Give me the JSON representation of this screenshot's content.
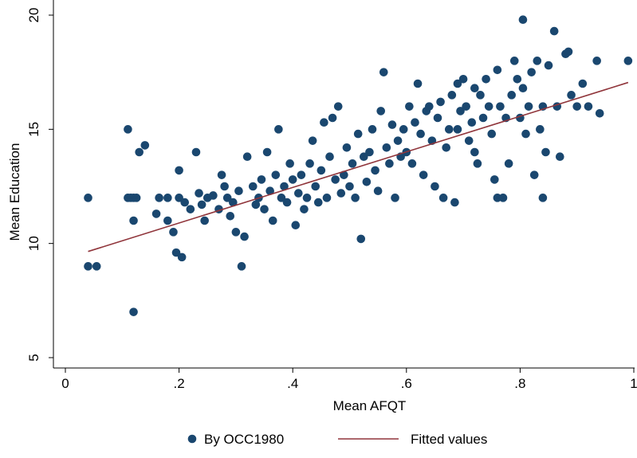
{
  "chart_data": {
    "type": "scatter",
    "xlabel": "Mean AFQT",
    "ylabel": "Mean Education",
    "xlim": [
      0,
      1
    ],
    "ylim": [
      5,
      20
    ],
    "x_ticks": [
      "0",
      ".2",
      ".4",
      ".6",
      ".8",
      "1"
    ],
    "x_tick_values": [
      0,
      0.2,
      0.4,
      0.6,
      0.8,
      1.0
    ],
    "y_ticks": [
      "5",
      "10",
      "15",
      "20"
    ],
    "y_tick_values": [
      5,
      10,
      15,
      20
    ],
    "grid": false,
    "legend_position": "bottom",
    "colors": {
      "scatter": "#1a476f",
      "fit": "#90353b"
    },
    "series": [
      {
        "name": "By OCC1980",
        "type": "scatter",
        "points": [
          [
            0.04,
            12.0
          ],
          [
            0.04,
            9.0
          ],
          [
            0.055,
            9.0
          ],
          [
            0.11,
            12.0
          ],
          [
            0.115,
            12.0
          ],
          [
            0.11,
            15.0
          ],
          [
            0.12,
            12.0
          ],
          [
            0.125,
            12.0
          ],
          [
            0.12,
            11.0
          ],
          [
            0.13,
            14.0
          ],
          [
            0.14,
            14.3
          ],
          [
            0.12,
            7.0
          ],
          [
            0.16,
            11.3
          ],
          [
            0.165,
            12.0
          ],
          [
            0.18,
            12.0
          ],
          [
            0.18,
            11.0
          ],
          [
            0.19,
            10.5
          ],
          [
            0.195,
            9.6
          ],
          [
            0.205,
            9.4
          ],
          [
            0.2,
            13.2
          ],
          [
            0.2,
            12.0
          ],
          [
            0.21,
            11.8
          ],
          [
            0.22,
            11.5
          ],
          [
            0.23,
            14.0
          ],
          [
            0.235,
            12.2
          ],
          [
            0.24,
            11.7
          ],
          [
            0.245,
            11.0
          ],
          [
            0.25,
            12.0
          ],
          [
            0.26,
            12.1
          ],
          [
            0.27,
            11.5
          ],
          [
            0.275,
            13.0
          ],
          [
            0.28,
            12.5
          ],
          [
            0.285,
            12.0
          ],
          [
            0.29,
            11.2
          ],
          [
            0.295,
            11.8
          ],
          [
            0.3,
            10.5
          ],
          [
            0.305,
            12.3
          ],
          [
            0.31,
            9.0
          ],
          [
            0.315,
            10.3
          ],
          [
            0.32,
            13.8
          ],
          [
            0.33,
            12.5
          ],
          [
            0.335,
            11.7
          ],
          [
            0.34,
            12.0
          ],
          [
            0.345,
            12.8
          ],
          [
            0.35,
            11.5
          ],
          [
            0.355,
            14.0
          ],
          [
            0.36,
            12.3
          ],
          [
            0.365,
            11.0
          ],
          [
            0.37,
            13.0
          ],
          [
            0.375,
            15.0
          ],
          [
            0.38,
            12.0
          ],
          [
            0.385,
            12.5
          ],
          [
            0.39,
            11.8
          ],
          [
            0.395,
            13.5
          ],
          [
            0.4,
            12.8
          ],
          [
            0.405,
            10.8
          ],
          [
            0.41,
            12.2
          ],
          [
            0.415,
            13.0
          ],
          [
            0.42,
            11.5
          ],
          [
            0.425,
            12.0
          ],
          [
            0.43,
            13.5
          ],
          [
            0.435,
            14.5
          ],
          [
            0.44,
            12.5
          ],
          [
            0.445,
            11.8
          ],
          [
            0.45,
            13.2
          ],
          [
            0.455,
            15.3
          ],
          [
            0.46,
            12.0
          ],
          [
            0.465,
            13.8
          ],
          [
            0.47,
            15.5
          ],
          [
            0.475,
            12.8
          ],
          [
            0.48,
            16.0
          ],
          [
            0.485,
            12.2
          ],
          [
            0.49,
            13.0
          ],
          [
            0.495,
            14.2
          ],
          [
            0.5,
            12.5
          ],
          [
            0.505,
            13.5
          ],
          [
            0.51,
            12.0
          ],
          [
            0.515,
            14.8
          ],
          [
            0.52,
            10.2
          ],
          [
            0.525,
            13.8
          ],
          [
            0.53,
            12.7
          ],
          [
            0.535,
            14.0
          ],
          [
            0.54,
            15.0
          ],
          [
            0.545,
            13.2
          ],
          [
            0.55,
            12.3
          ],
          [
            0.555,
            15.8
          ],
          [
            0.56,
            17.5
          ],
          [
            0.565,
            14.2
          ],
          [
            0.57,
            13.5
          ],
          [
            0.575,
            15.2
          ],
          [
            0.58,
            12.0
          ],
          [
            0.585,
            14.5
          ],
          [
            0.59,
            13.8
          ],
          [
            0.595,
            15.0
          ],
          [
            0.6,
            14.0
          ],
          [
            0.605,
            16.0
          ],
          [
            0.61,
            13.5
          ],
          [
            0.615,
            15.3
          ],
          [
            0.62,
            17.0
          ],
          [
            0.625,
            14.8
          ],
          [
            0.63,
            13.0
          ],
          [
            0.635,
            15.8
          ],
          [
            0.64,
            16.0
          ],
          [
            0.645,
            14.5
          ],
          [
            0.65,
            12.5
          ],
          [
            0.655,
            15.5
          ],
          [
            0.66,
            16.2
          ],
          [
            0.665,
            12.0
          ],
          [
            0.67,
            14.2
          ],
          [
            0.675,
            15.0
          ],
          [
            0.68,
            16.5
          ],
          [
            0.685,
            11.8
          ],
          [
            0.69,
            17.0
          ],
          [
            0.695,
            15.8
          ],
          [
            0.7,
            17.2
          ],
          [
            0.705,
            16.0
          ],
          [
            0.71,
            14.5
          ],
          [
            0.715,
            15.3
          ],
          [
            0.72,
            16.8
          ],
          [
            0.725,
            13.5
          ],
          [
            0.73,
            16.5
          ],
          [
            0.735,
            15.5
          ],
          [
            0.74,
            17.2
          ],
          [
            0.745,
            16.0
          ],
          [
            0.75,
            14.8
          ],
          [
            0.755,
            12.8
          ],
          [
            0.76,
            12.0
          ],
          [
            0.765,
            16.0
          ],
          [
            0.77,
            12.0
          ],
          [
            0.775,
            15.5
          ],
          [
            0.78,
            13.5
          ],
          [
            0.785,
            16.5
          ],
          [
            0.79,
            18.0
          ],
          [
            0.795,
            17.2
          ],
          [
            0.8,
            15.5
          ],
          [
            0.805,
            16.8
          ],
          [
            0.81,
            14.8
          ],
          [
            0.815,
            16.0
          ],
          [
            0.82,
            17.5
          ],
          [
            0.825,
            13.0
          ],
          [
            0.83,
            18.0
          ],
          [
            0.835,
            15.0
          ],
          [
            0.84,
            16.0
          ],
          [
            0.845,
            14.0
          ],
          [
            0.85,
            17.8
          ],
          [
            0.86,
            19.3
          ],
          [
            0.865,
            16.0
          ],
          [
            0.87,
            13.8
          ],
          [
            0.88,
            18.3
          ],
          [
            0.885,
            18.4
          ],
          [
            0.89,
            16.5
          ],
          [
            0.9,
            16.0
          ],
          [
            0.91,
            17.0
          ],
          [
            0.92,
            16.0
          ],
          [
            0.935,
            18.0
          ],
          [
            0.94,
            15.7
          ],
          [
            0.805,
            19.8
          ],
          [
            0.84,
            12.0
          ],
          [
            0.99,
            18.0
          ],
          [
            0.76,
            17.6
          ],
          [
            0.69,
            15.0
          ],
          [
            0.72,
            14.0
          ]
        ]
      },
      {
        "name": "Fitted values",
        "type": "line",
        "points": [
          [
            0.04,
            9.65
          ],
          [
            0.99,
            17.05
          ]
        ]
      }
    ]
  }
}
